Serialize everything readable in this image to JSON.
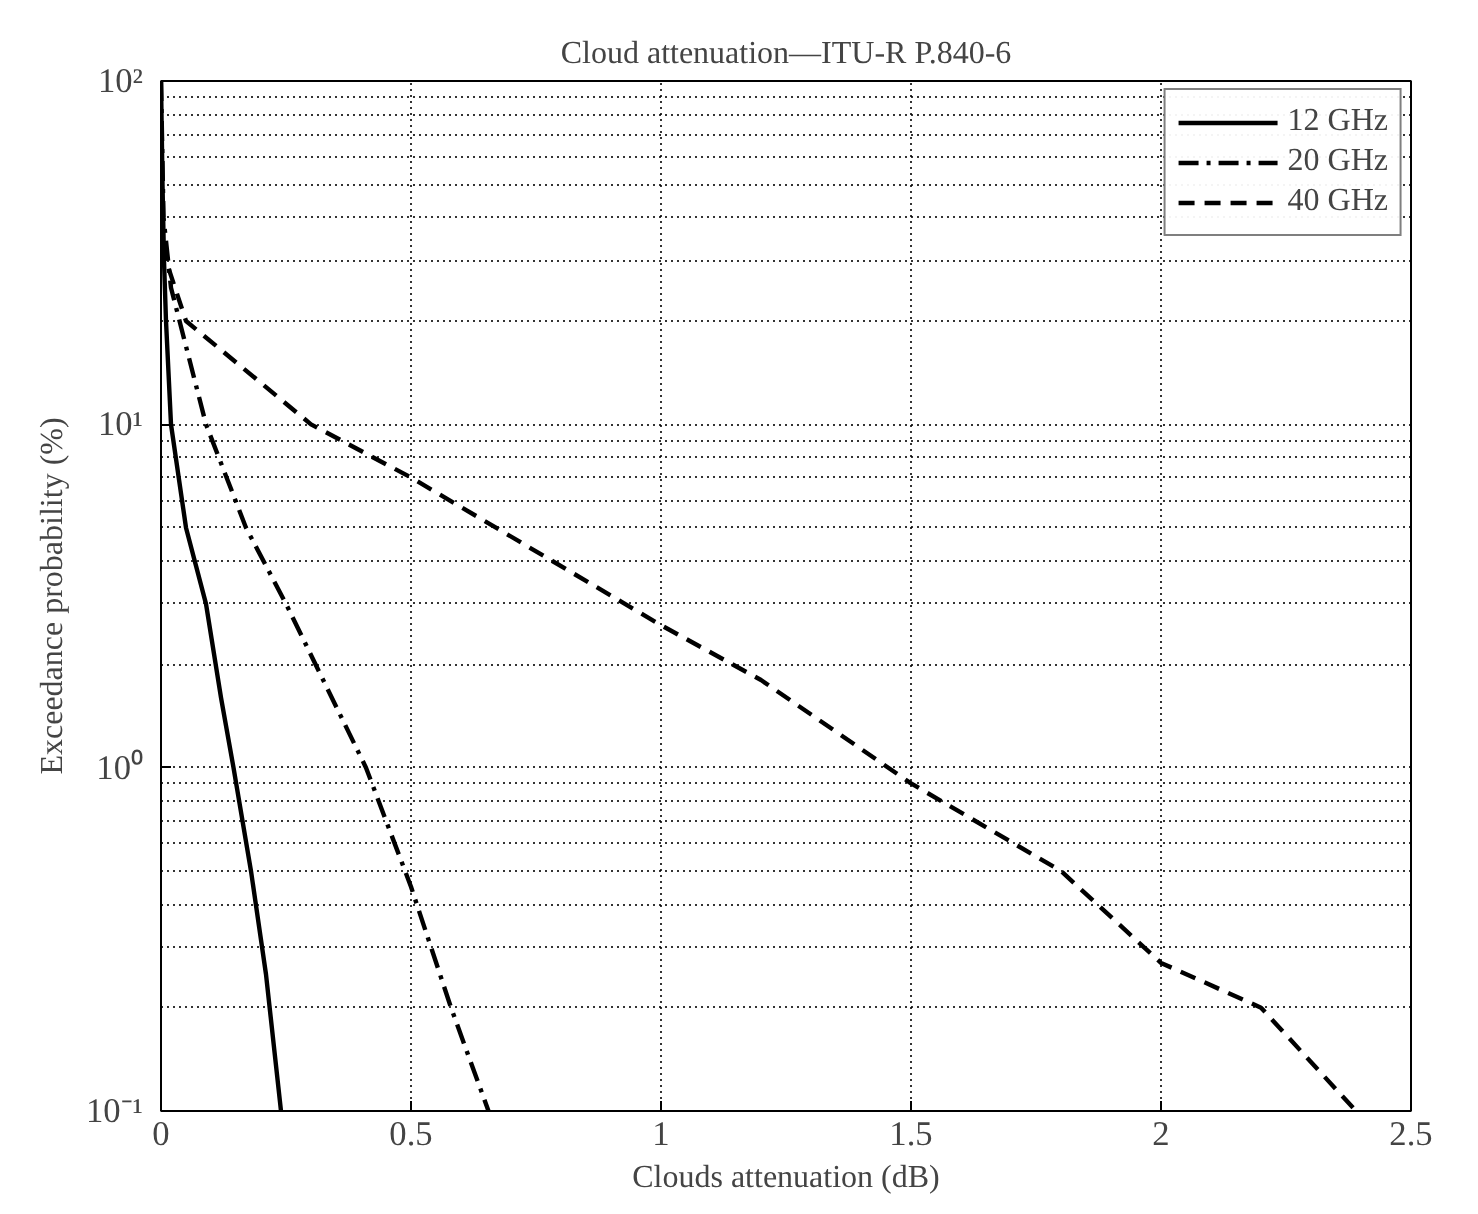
{
  "chart_data": {
    "type": "line",
    "title": "Cloud attenuation—ITU-R P.840-6",
    "xlabel": "Clouds attenuation (dB)",
    "ylabel": "Exceedance probability (%)",
    "log": "y",
    "xlim": [
      0,
      2.5
    ],
    "xticks": [
      0,
      0.5,
      1,
      1.5,
      2,
      2.5
    ],
    "ylim": [
      0.1,
      100
    ],
    "yticks": [
      {
        "value": 0.1,
        "label": "10⁻¹"
      },
      {
        "value": 1,
        "label": "10⁰"
      },
      {
        "value": 10,
        "label": "10¹"
      },
      {
        "value": 100,
        "label": "10²"
      }
    ],
    "grid": true,
    "legend": "top right",
    "marker": "none",
    "series": [
      {
        "name": "12 GHz",
        "color": "#000000",
        "line_style": "solid",
        "x": [
          0,
          0.003,
          0.006,
          0.01,
          0.02,
          0.05,
          0.09,
          0.12,
          0.145,
          0.18,
          0.21,
          0.24
        ],
        "values": [
          100,
          50,
          30,
          20,
          10,
          5,
          3,
          1.6,
          1,
          0.5,
          0.25,
          0.1
        ]
      },
      {
        "name": "20 GHz",
        "color": "#000000",
        "line_style": "dashdot",
        "x": [
          0,
          0.005,
          0.02,
          0.09,
          0.17,
          0.25,
          0.41,
          0.5,
          0.58,
          0.655
        ],
        "values": [
          100,
          40,
          25,
          10,
          5,
          3,
          1,
          0.45,
          0.2,
          0.1
        ]
      },
      {
        "name": "40 GHz",
        "color": "#000000",
        "line_style": "dashed",
        "x": [
          0,
          0.01,
          0.05,
          0.3,
          0.5,
          1,
          1.2,
          1.5,
          1.8,
          2,
          2.2,
          2.39
        ],
        "values": [
          40,
          30,
          20,
          10,
          7,
          2.6,
          1.8,
          0.9,
          0.5,
          0.27,
          0.2,
          0.1
        ]
      }
    ]
  }
}
